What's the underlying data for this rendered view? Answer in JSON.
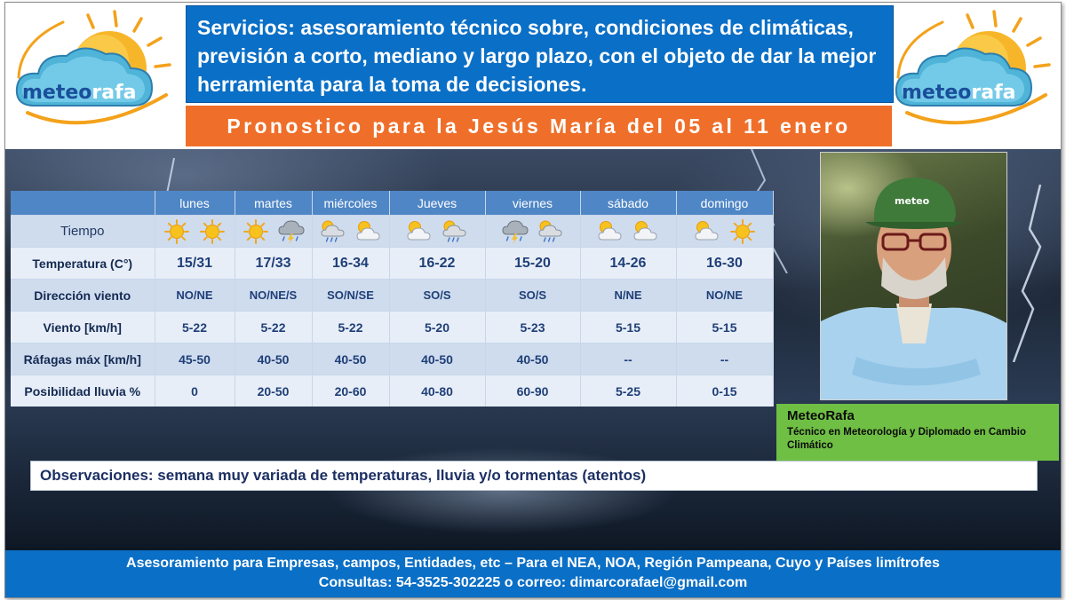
{
  "logo": {
    "text_part1": "meteo",
    "text_part2": "rafa"
  },
  "header": {
    "services": "Servicios: asesoramiento técnico sobre, condiciones de climáticas, previsión a corto, mediano y largo plazo, con el objeto de dar la mejor herramienta para la toma de decisiones.",
    "forecast_title": "Pronostico para la Jesús María del 05 al 11 enero"
  },
  "table": {
    "days": [
      "lunes",
      "martes",
      "miércoles",
      "Jueves",
      "viernes",
      "sábado",
      "domingo"
    ],
    "tiempo_label": "Tiempo",
    "tiempo_icons": [
      [
        "sun-icon",
        "sun-icon"
      ],
      [
        "sun-icon",
        "storm-cloud-icon"
      ],
      [
        "sun-rain-cloud-icon",
        "partly-cloudy-icon"
      ],
      [
        "partly-cloudy-icon",
        "sun-rain-cloud-icon"
      ],
      [
        "storm-cloud-icon",
        "sun-rain-cloud-icon"
      ],
      [
        "partly-cloudy-icon",
        "partly-cloudy-icon"
      ],
      [
        "partly-cloudy-icon",
        "sun-icon"
      ]
    ],
    "rows": [
      {
        "label": "Temperatura (C°)",
        "values": [
          "15/31",
          "17/33",
          "16-34",
          "16-22",
          "15-20",
          "14-26",
          "16-30"
        ]
      },
      {
        "label": "Dirección viento",
        "values": [
          "NO/NE",
          "NO/NE/S",
          "SO/N/SE",
          "SO/S",
          "SO/S",
          "N/NE",
          "NO/NE"
        ]
      },
      {
        "label": "Viento  [km/h]",
        "values": [
          "5-22",
          "5-22",
          "5-22",
          "5-20",
          "5-23",
          "5-15",
          "5-15"
        ]
      },
      {
        "label": "Ráfagas máx [km/h]",
        "values": [
          "45-50",
          "40-50",
          "40-50",
          "40-50",
          "40-50",
          "--",
          "--"
        ]
      },
      {
        "label": "Posibilidad lluvia %",
        "values": [
          "0",
          "20-50",
          "20-60",
          "40-80",
          "60-90",
          "5-25",
          "0-15"
        ]
      }
    ]
  },
  "profile": {
    "cap_text": "meteo",
    "name": "MeteoRafa",
    "subtitle": "Técnico en Meteorología  y Diplomado en Cambio Climático"
  },
  "observations": "Observaciones: semana muy variada de temperaturas, lluvia y/o tormentas (atentos)",
  "footer": {
    "line1": "Asesoramiento para Empresas, campos, Entidades, etc – Para el  NEA, NOA, Región Pampeana, Cuyo y Países limítrofes",
    "line2": "Consultas: 54-3525-302225 o correo: dimarcorafael@gmail.com"
  }
}
